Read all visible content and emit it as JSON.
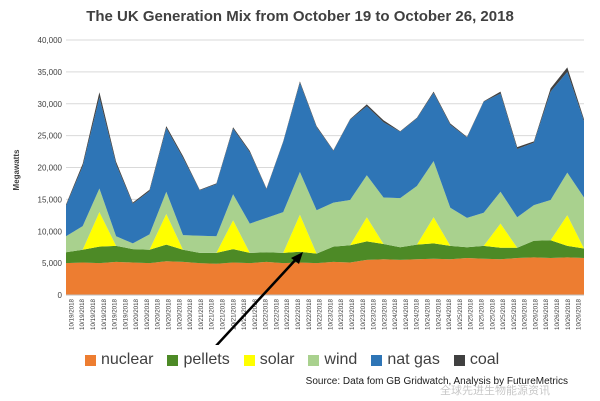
{
  "chart_data": {
    "type": "area",
    "stacked": true,
    "title": "The UK Generation Mix from October 19 to October 26, 2018",
    "ylabel": "Megawatts",
    "xlabel": "",
    "ylim": [
      0,
      40000
    ],
    "yticks": [
      "0",
      "5,000",
      "10,000",
      "15,000",
      "20,000",
      "25,000",
      "30,000",
      "35,000",
      "40,000"
    ],
    "xtick_dates": [
      "10/19/2018",
      "10/20/2018",
      "10/21/2018",
      "10/22/2018",
      "10/23/2018",
      "10/24/2018",
      "10/25/2018",
      "10/26/2018"
    ],
    "xticks_per_day": 6,
    "grid": true,
    "legend_position": "bottom",
    "series": [
      {
        "name": "nuclear",
        "color": "#ed7d31",
        "values": [
          5000,
          5100,
          5000,
          5200,
          5100,
          5000,
          5300,
          5200,
          5000,
          4900,
          5100,
          5000,
          5200,
          5000,
          5100,
          5000,
          5200,
          5100,
          5500,
          5600,
          5500,
          5600,
          5700,
          5600,
          5800,
          5700,
          5600,
          5800,
          5900,
          5800,
          5900,
          5800
        ]
      },
      {
        "name": "pellets",
        "color": "#4d8a26",
        "values": [
          1700,
          2000,
          2600,
          2500,
          2100,
          2100,
          2600,
          1900,
          1600,
          1700,
          2100,
          1600,
          1500,
          1600,
          1700,
          1500,
          2400,
          2700,
          2900,
          2400,
          2000,
          2300,
          2400,
          2100,
          1700,
          2000,
          1800,
          1600,
          2600,
          2800,
          1800,
          1500
        ]
      },
      {
        "name": "solar",
        "color": "#ffff00",
        "values": [
          0,
          0,
          5400,
          0,
          0,
          0,
          4800,
          0,
          0,
          0,
          4500,
          0,
          0,
          0,
          5800,
          0,
          0,
          0,
          3800,
          0,
          0,
          0,
          4100,
          0,
          0,
          0,
          3800,
          0,
          0,
          0,
          4800,
          0
        ]
      },
      {
        "name": "wind",
        "color": "#a9d18e",
        "values": [
          2500,
          3700,
          3700,
          1500,
          900,
          2400,
          3500,
          2300,
          2700,
          2600,
          4100,
          4600,
          5400,
          6400,
          6700,
          6800,
          6900,
          7100,
          6600,
          7300,
          7700,
          9200,
          8800,
          6000,
          4600,
          5200,
          5000,
          4800,
          5600,
          6300,
          6700,
          8000
        ]
      },
      {
        "name": "nat gas",
        "color": "#2e75b6",
        "values": [
          4800,
          9400,
          14300,
          11300,
          6200,
          6800,
          10000,
          12100,
          7100,
          8200,
          10300,
          11200,
          4500,
          11000,
          14000,
          13000,
          8100,
          12600,
          10800,
          11800,
          10400,
          10600,
          10700,
          13000,
          12600,
          17400,
          15400,
          10700,
          9800,
          17000,
          15800,
          12000
        ]
      },
      {
        "name": "coal",
        "color": "#404040",
        "values": [
          200,
          400,
          800,
          400,
          200,
          200,
          300,
          300,
          100,
          100,
          200,
          200,
          100,
          100,
          200,
          200,
          100,
          100,
          300,
          300,
          100,
          100,
          200,
          200,
          100,
          100,
          300,
          300,
          200,
          500,
          700,
          300
        ]
      }
    ]
  },
  "legend": [
    {
      "label": "nuclear",
      "color": "#ed7d31"
    },
    {
      "label": "pellets",
      "color": "#4d8a26"
    },
    {
      "label": "solar",
      "color": "#ffff00"
    },
    {
      "label": "wind",
      "color": "#a9d18e"
    },
    {
      "label": "nat gas",
      "color": "#2e75b6"
    },
    {
      "label": "coal",
      "color": "#404040"
    }
  ],
  "source_text": "Source: Data fom GB Gridwatch, Analysis by FutureMetrics",
  "watermark_text": "全球先进生物能源资讯"
}
